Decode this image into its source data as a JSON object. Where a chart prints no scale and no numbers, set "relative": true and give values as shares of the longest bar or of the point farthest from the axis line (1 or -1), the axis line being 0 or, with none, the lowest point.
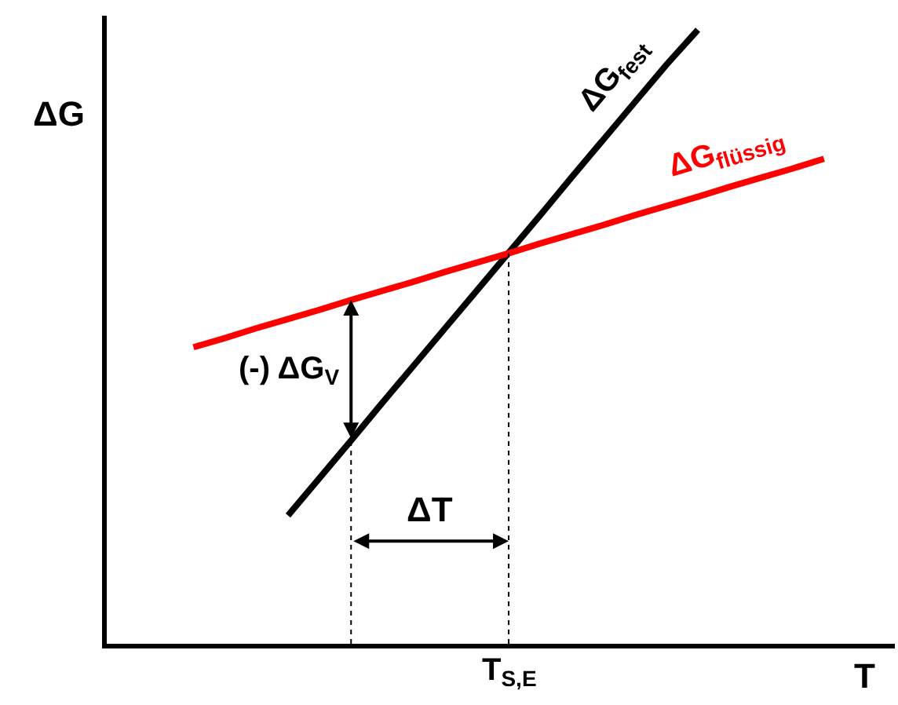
{
  "chart_data": {
    "type": "line",
    "relative": true,
    "xlabel": "T",
    "ylabel": "ΔG",
    "categories": [
      null,
      null,
      null,
      null,
      null,
      null,
      null,
      null,
      null,
      null,
      null,
      null,
      null,
      null,
      null,
      null,
      null,
      null,
      null,
      null,
      null
    ],
    "series": [
      {
        "name": "ΔG$_{fest}$",
        "color": "#000000",
        "values": [
          null,
          null,
          null,
          0.209,
          0.27,
          0.331,
          0.393,
          0.454,
          0.515,
          0.576,
          0.637,
          0.698,
          0.76,
          0.821,
          0.882,
          0.943,
          1.0,
          null,
          null,
          null,
          null
        ]
      },
      {
        "name": "ΔG$_{flüssig}$",
        "color": "#ff0000",
        "values": [
          0.483,
          0.498,
          0.514,
          0.529,
          0.544,
          0.56,
          0.575,
          0.59,
          0.606,
          0.621,
          0.636,
          0.652,
          0.667,
          0.682,
          0.698,
          0.713,
          0.728,
          0.744,
          0.759,
          0.774,
          0.79
        ]
      }
    ],
    "annotations": [
      "(-) ΔG$_{V}$",
      "ΔT",
      "T$_{S,E}$"
    ],
    "legend": false,
    "marker": "none",
    "line_style": "solid"
  }
}
